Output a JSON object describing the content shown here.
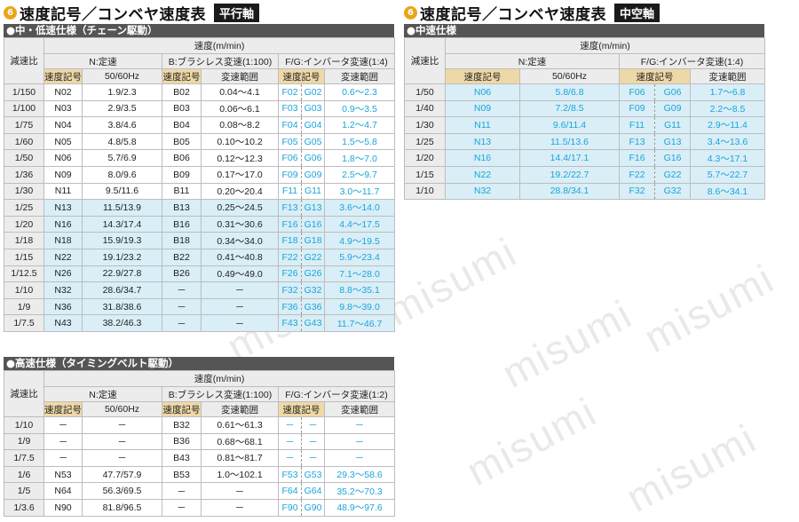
{
  "watermark": "misumi",
  "left": {
    "num": "6",
    "title": "速度記号／コンベヤ速度表",
    "tag": "平行軸",
    "mid": {
      "section_title": "●中・低速仕様（チェーン駆動）",
      "h_ratio": "減速比",
      "h_speed": "速度(m/min)",
      "h_n": "N:定速",
      "h_b": "B:ブラシレス変速(1:100)",
      "h_fg": "F/G:インバータ変速(1:4)",
      "h_code": "速度記号",
      "h_hz": "50/60Hz",
      "h_range": "変速範囲",
      "rows": [
        [
          "1/150",
          "N02",
          "1.9/2.3",
          "B02",
          "0.04～4.1",
          "F02",
          "G02",
          "0.6～2.3"
        ],
        [
          "1/100",
          "N03",
          "2.9/3.5",
          "B03",
          "0.06～6.1",
          "F03",
          "G03",
          "0.9～3.5"
        ],
        [
          "1/75",
          "N04",
          "3.8/4.6",
          "B04",
          "0.08～8.2",
          "F04",
          "G04",
          "1.2～4.7"
        ],
        [
          "1/60",
          "N05",
          "4.8/5.8",
          "B05",
          "0.10～10.2",
          "F05",
          "G05",
          "1.5～5.8"
        ],
        [
          "1/50",
          "N06",
          "5.7/6.9",
          "B06",
          "0.12～12.3",
          "F06",
          "G06",
          "1.8～7.0"
        ],
        [
          "1/36",
          "N09",
          "8.0/9.6",
          "B09",
          "0.17～17.0",
          "F09",
          "G09",
          "2.5～9.7"
        ],
        [
          "1/30",
          "N11",
          "9.5/11.6",
          "B11",
          "0.20～20.4",
          "F11",
          "G11",
          "3.0～11.7"
        ],
        [
          "1/25",
          "N13",
          "11.5/13.9",
          "B13",
          "0.25～24.5",
          "F13",
          "G13",
          "3.6～14.0"
        ],
        [
          "1/20",
          "N16",
          "14.3/17.4",
          "B16",
          "0.31～30.6",
          "F16",
          "G16",
          "4.4～17.5"
        ],
        [
          "1/18",
          "N18",
          "15.9/19.3",
          "B18",
          "0.34～34.0",
          "F18",
          "G18",
          "4.9～19.5"
        ],
        [
          "1/15",
          "N22",
          "19.1/23.2",
          "B22",
          "0.41～40.8",
          "F22",
          "G22",
          "5.9～23.4"
        ],
        [
          "1/12.5",
          "N26",
          "22.9/27.8",
          "B26",
          "0.49～49.0",
          "F26",
          "G26",
          "7.1～28.0"
        ],
        [
          "1/10",
          "N32",
          "28.6/34.7",
          "－",
          "－",
          "F32",
          "G32",
          "8.8～35.1"
        ],
        [
          "1/9",
          "N36",
          "31.8/38.6",
          "－",
          "－",
          "F36",
          "G36",
          "9.8～39.0"
        ],
        [
          "1/7.5",
          "N43",
          "38.2/46.3",
          "－",
          "－",
          "F43",
          "G43",
          "11.7～46.7"
        ]
      ]
    },
    "high": {
      "section_title": "●高速仕様（タイミングベルト駆動）",
      "h_ratio": "減速比",
      "h_speed": "速度(m/min)",
      "h_n": "N:定速",
      "h_b": "B:ブラシレス変速(1:100)",
      "h_fg": "F/G:インバータ変速(1:2)",
      "h_code": "速度記号",
      "h_hz": "50/60Hz",
      "h_range": "変速範囲",
      "rows": [
        [
          "1/10",
          "－",
          "－",
          "B32",
          "0.61～61.3",
          "－",
          "－",
          "－"
        ],
        [
          "1/9",
          "－",
          "－",
          "B36",
          "0.68～68.1",
          "－",
          "－",
          "－"
        ],
        [
          "1/7.5",
          "－",
          "－",
          "B43",
          "0.81～81.7",
          "－",
          "－",
          "－"
        ],
        [
          "1/6",
          "N53",
          "47.7/57.9",
          "B53",
          "1.0～102.1",
          "F53",
          "G53",
          "29.3～58.6"
        ],
        [
          "1/5",
          "N64",
          "56.3/69.5",
          "－",
          "－",
          "F64",
          "G64",
          "35.2～70.3"
        ],
        [
          "1/3.6",
          "N90",
          "81.8/96.5",
          "－",
          "－",
          "F90",
          "G90",
          "48.9～97.6"
        ]
      ]
    }
  },
  "right": {
    "num": "6",
    "title": "速度記号／コンベヤ速度表",
    "tag": "中空軸",
    "mid": {
      "section_title": "●中速仕様",
      "h_ratio": "減速比",
      "h_speed": "速度(m/min)",
      "h_n": "N:定速",
      "h_fg": "F/G:インバータ変速(1:4)",
      "h_code": "速度記号",
      "h_hz": "50/60Hz",
      "h_range": "変速範囲",
      "rows": [
        [
          "1/50",
          "N06",
          "5.8/6.8",
          "F06",
          "G06",
          "1.7～6.8"
        ],
        [
          "1/40",
          "N09",
          "7.2/8.5",
          "F09",
          "G09",
          "2.2～8.5"
        ],
        [
          "1/30",
          "N11",
          "9.6/11.4",
          "F11",
          "G11",
          "2.9～11.4"
        ],
        [
          "1/25",
          "N13",
          "11.5/13.6",
          "F13",
          "G13",
          "3.4～13.6"
        ],
        [
          "1/20",
          "N16",
          "14.4/17.1",
          "F16",
          "G16",
          "4.3～17.1"
        ],
        [
          "1/15",
          "N22",
          "19.2/22.7",
          "F22",
          "G22",
          "5.7～22.7"
        ],
        [
          "1/10",
          "N32",
          "28.8/34.1",
          "F32",
          "G32",
          "8.6～34.1"
        ]
      ]
    }
  }
}
